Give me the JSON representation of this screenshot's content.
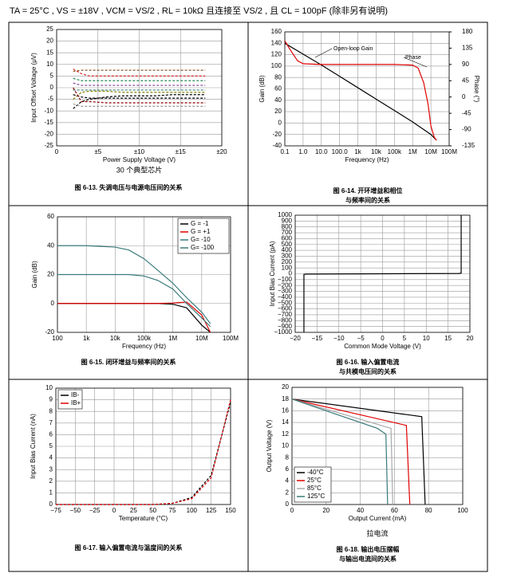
{
  "header": "TA = 25°C , VS = ±18V , VCM = VS/2 , RL = 10kΩ 且连接至 VS/2 , 且 CL = 100pF (除非另有说明)",
  "chart_data": [
    {
      "type": "line",
      "subtitle": "30 个典型芯片",
      "caption": [
        "图 6-13. 失调电压与电源电压间的关系"
      ],
      "xlabel": "Power Supply Voltage (V)",
      "ylabel": "Input Offset Voltage (μV)",
      "line_style": "dashed",
      "grid": true,
      "x": [
        2,
        3,
        4,
        6,
        8,
        10,
        12,
        14,
        16,
        18
      ],
      "xlim": [
        0,
        20
      ],
      "xticks": [
        0,
        {
          "value": 5,
          "label": "±5"
        },
        {
          "value": 10,
          "label": "±10"
        },
        {
          "value": 15,
          "label": "±15"
        },
        {
          "value": 20,
          "label": "±20"
        }
      ],
      "ylim": [
        -25,
        25
      ],
      "yticks": [
        -25,
        -20,
        -15,
        -10,
        -5,
        0,
        5,
        10,
        15,
        20,
        25
      ],
      "series": [
        {
          "color": "#000000",
          "values": [
            -3,
            -4,
            -4.5,
            -4.5,
            -4.5,
            -4.5,
            -4.5,
            -4.5,
            -4.5,
            -4.5
          ]
        },
        {
          "color": "#000000",
          "values": [
            -9,
            -6,
            -5,
            -4,
            -3.5,
            -3.5,
            -3.5,
            -3,
            -3,
            -3
          ]
        },
        {
          "color": "#d62728",
          "values": [
            8,
            6,
            5,
            5,
            5,
            5,
            5,
            5,
            5,
            5
          ]
        },
        {
          "color": "#2e8b57",
          "values": [
            4,
            3,
            3,
            3,
            3,
            3,
            3,
            3,
            3,
            3
          ]
        },
        {
          "color": "#3a7a7a",
          "values": [
            -1,
            -1,
            -1,
            -1,
            -1,
            -1,
            -1,
            -1,
            -1,
            -1
          ]
        },
        {
          "color": "#8b5a2b",
          "values": [
            7,
            7.5,
            7.5,
            7.5,
            7.5,
            7.5,
            7.5,
            7.5,
            7.5,
            7.5
          ]
        },
        {
          "color": "#999999",
          "values": [
            -7,
            -8,
            -8,
            -8,
            -8,
            -8,
            -8,
            -8,
            -8,
            -8
          ]
        },
        {
          "color": "#7b3f9e",
          "values": [
            2,
            1,
            1,
            1,
            1,
            1,
            1,
            1,
            1,
            1
          ]
        },
        {
          "color": "#808000",
          "values": [
            -5,
            -2,
            -1.5,
            -1.5,
            -2,
            -2,
            -2,
            -2,
            -2,
            -2
          ]
        },
        {
          "color": "#8b0000",
          "values": [
            0,
            -6,
            -6,
            -6.5,
            -6.5,
            -6.5,
            -6.5,
            -6.5,
            -6.5,
            -6.5
          ]
        }
      ]
    },
    {
      "type": "line",
      "caption": [
        "图 6-14. 开环增益和相位",
        "与频率间的关系"
      ],
      "xlabel": "Frequency (Hz)",
      "ylabel": "Gain (dB)",
      "y2label": "Phase (°)",
      "xlog": true,
      "grid": true,
      "annotations": [
        "Open-loop Gain",
        "Phase"
      ],
      "xlim": [
        0.1,
        100000000
      ],
      "xticks": [
        0.1,
        {
          "value": 1,
          "label": "1.0"
        },
        {
          "value": 10,
          "label": "10.0"
        },
        {
          "value": 100,
          "label": "100.0"
        },
        {
          "value": 1000,
          "label": "1k"
        },
        {
          "value": 10000,
          "label": "10k"
        },
        {
          "value": 100000,
          "label": "100k"
        },
        {
          "value": 1000000,
          "label": "1M"
        },
        {
          "value": 10000000,
          "label": "10M"
        },
        {
          "value": 100000000,
          "label": "100M"
        }
      ],
      "ylim": [
        -40,
        160
      ],
      "yticks": [
        -40,
        -20,
        0,
        20,
        40,
        60,
        80,
        100,
        120,
        140,
        160
      ],
      "y2lim": [
        -135,
        180
      ],
      "y2ticks": [
        -135,
        -90,
        -45,
        0,
        45,
        90,
        135,
        180
      ],
      "series": [
        {
          "color": "#000000",
          "x": [
            0.1,
            1,
            10,
            100,
            1000,
            10000,
            100000,
            1000000,
            10000000,
            20000000
          ],
          "values": [
            140,
            121,
            102,
            82,
            62,
            42,
            22,
            2,
            -20,
            -30
          ]
        },
        {
          "color": "#e00000",
          "axis": "y2",
          "x": [
            0.1,
            0.2,
            0.5,
            1,
            10,
            100000,
            1000000,
            2000000,
            4000000,
            7000000,
            10000000,
            15000000,
            20000000
          ],
          "values": [
            155,
            130,
            100,
            92,
            90,
            90,
            88,
            80,
            40,
            -20,
            -80,
            -110,
            -120
          ]
        }
      ]
    },
    {
      "type": "line",
      "caption": [
        "图 6-15. 闭环增益与频率间的关系"
      ],
      "xlabel": "Frequency (Hz)",
      "ylabel": "Gain (dB)",
      "xlog": true,
      "grid": true,
      "legend": "upper right",
      "x": [
        100,
        1000,
        10000,
        30000,
        100000,
        300000,
        1000000,
        3000000,
        10000000,
        20000000
      ],
      "xlim": [
        100,
        100000000
      ],
      "xticks": [
        100,
        {
          "value": 1000,
          "label": "1k"
        },
        {
          "value": 10000,
          "label": "10k"
        },
        {
          "value": 100000,
          "label": "100k"
        },
        {
          "value": 1000000,
          "label": "1M"
        },
        {
          "value": 10000000,
          "label": "10M"
        },
        {
          "value": 100000000,
          "label": "100M"
        }
      ],
      "ylim": [
        -20,
        60
      ],
      "yticks": [
        -20,
        0,
        20,
        40,
        60
      ],
      "series": [
        {
          "name": "G = -1",
          "color": "#000000",
          "values": [
            0,
            0,
            0,
            0,
            0,
            0,
            -0.5,
            -3,
            -15,
            -20
          ]
        },
        {
          "name": "G = +1",
          "color": "#e00000",
          "values": [
            0,
            0,
            0,
            0,
            0,
            0,
            0.3,
            1,
            -8,
            -20
          ]
        },
        {
          "name": "G= -10",
          "color": "#3a7a7a",
          "values": [
            20,
            20,
            20,
            20,
            19,
            16,
            10,
            0,
            -10,
            -16
          ]
        },
        {
          "name": "G= -100",
          "color": "#3a7a7a",
          "values": [
            40,
            40,
            39,
            37,
            31,
            23,
            14,
            4,
            -6,
            -14
          ]
        }
      ]
    },
    {
      "type": "line",
      "caption": [
        "图 6-16. 输入偏置电流",
        "与共模电压间的关系"
      ],
      "xlabel": "Common Mode Voltage (V)",
      "ylabel": "Input Bias Current (pA)",
      "grid": true,
      "xlim": [
        -20,
        20
      ],
      "xticks": [
        {
          "value": -20,
          "label": "−20"
        },
        {
          "value": -15,
          "label": "−15"
        },
        {
          "value": -10,
          "label": "−10"
        },
        {
          "value": -5,
          "label": "−5"
        },
        0,
        5,
        10,
        15,
        20
      ],
      "ylim": [
        -1000,
        1000
      ],
      "yticks": [
        {
          "value": -1000,
          "label": "−1000"
        },
        {
          "value": -900,
          "label": "−900"
        },
        {
          "value": -800,
          "label": "−800"
        },
        {
          "value": -700,
          "label": "−700"
        },
        {
          "value": -600,
          "label": "−600"
        },
        {
          "value": -500,
          "label": "−500"
        },
        {
          "value": -400,
          "label": "−400"
        },
        {
          "value": -300,
          "label": "−300"
        },
        {
          "value": -200,
          "label": "−200"
        },
        {
          "value": -100,
          "label": "−100"
        },
        0,
        100,
        200,
        300,
        400,
        500,
        600,
        700,
        800,
        900,
        1000
      ],
      "series": [
        {
          "color": "#000000",
          "x": [
            -18,
            -18,
            -17.5,
            0,
            17.5,
            18,
            18
          ],
          "values": [
            -1000,
            -10,
            -5,
            0,
            5,
            10,
            1000
          ]
        }
      ]
    },
    {
      "type": "line",
      "caption": [
        "图 6-17. 输入偏置电流与温度间的关系"
      ],
      "xlabel": "Temperature (°C)",
      "ylabel": "Input Bias Current (nA)",
      "line_style": "dashed",
      "grid": true,
      "legend": "upper left",
      "x": [
        -75,
        -50,
        -25,
        0,
        25,
        50,
        75,
        100,
        125,
        150
      ],
      "xlim": [
        -75,
        150
      ],
      "xticks": [
        {
          "value": -75,
          "label": "−75"
        },
        {
          "value": -50,
          "label": "−50"
        },
        {
          "value": -25,
          "label": "−25"
        },
        0,
        25,
        50,
        75,
        100,
        125,
        150
      ],
      "ylim": [
        0,
        10
      ],
      "yticks": [
        0,
        1,
        2,
        3,
        4,
        5,
        6,
        7,
        8,
        9,
        10
      ],
      "series": [
        {
          "name": "IB-",
          "color": "#000000",
          "values": [
            0,
            0,
            0,
            0,
            0,
            0,
            0.1,
            0.6,
            2.5,
            8.8
          ]
        },
        {
          "name": "IB+",
          "color": "#e00000",
          "values": [
            0,
            0,
            0,
            0,
            0,
            0,
            0.1,
            0.5,
            2.3,
            9
          ]
        }
      ]
    },
    {
      "type": "line",
      "subtitle": "拉电流",
      "caption": [
        "图 6-18. 输出电压摆幅",
        "与输出电流间的关系"
      ],
      "xlabel": "Output Current (mA)",
      "ylabel": "Output Voltage (V)",
      "grid": true,
      "legend": "lower left",
      "xlim": [
        0,
        100
      ],
      "xticks": [
        0,
        20,
        40,
        60,
        80,
        100
      ],
      "ylim": [
        0,
        20
      ],
      "yticks": [
        0,
        2,
        4,
        6,
        8,
        10,
        12,
        14,
        16,
        18,
        20
      ],
      "series": [
        {
          "name": "-40°C",
          "color": "#000000",
          "x": [
            0,
            76,
            78
          ],
          "values": [
            18,
            15,
            0
          ]
        },
        {
          "name": "25°C",
          "color": "#e00000",
          "x": [
            0,
            67,
            69
          ],
          "values": [
            18,
            13.5,
            0
          ]
        },
        {
          "name": "85°C",
          "color": "#aaaaaa",
          "x": [
            0,
            58,
            59
          ],
          "values": [
            18,
            13,
            0
          ]
        },
        {
          "name": "125°C",
          "color": "#3a7a7a",
          "x": [
            0,
            50,
            55,
            56
          ],
          "values": [
            18,
            13,
            12,
            0
          ]
        }
      ]
    }
  ]
}
